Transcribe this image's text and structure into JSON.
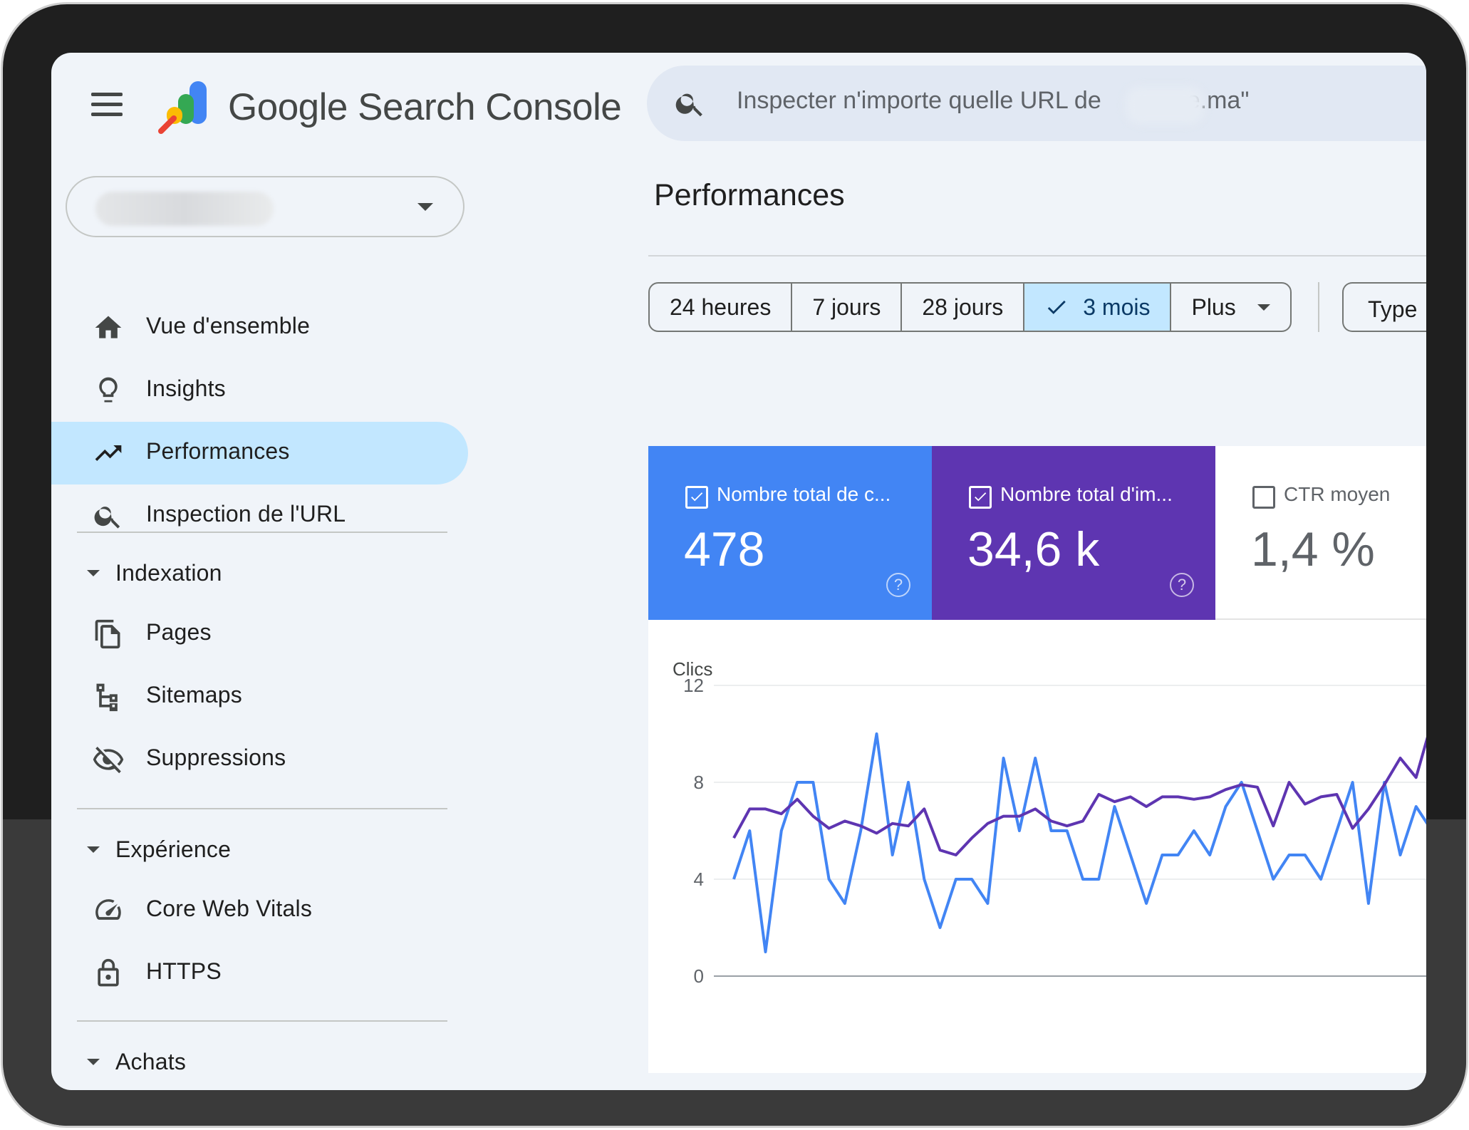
{
  "app": {
    "brand_google": "Google",
    "brand_product": "Search Console"
  },
  "search": {
    "placeholder_prefix": "Inspecter n'importe quelle URL de",
    "placeholder_suffix": "e.ma\""
  },
  "sidebar": {
    "items": [
      {
        "label": "Vue d'ensemble",
        "icon": "home-icon"
      },
      {
        "label": "Insights",
        "icon": "lightbulb-icon"
      },
      {
        "label": "Performances",
        "icon": "trending-up-icon",
        "active": true
      },
      {
        "label": "Inspection de l'URL",
        "icon": "search-icon"
      }
    ],
    "sections": [
      {
        "label": "Indexation",
        "items": [
          {
            "label": "Pages",
            "icon": "pages-icon"
          },
          {
            "label": "Sitemaps",
            "icon": "sitemap-icon"
          },
          {
            "label": "Suppressions",
            "icon": "eye-off-icon"
          }
        ]
      },
      {
        "label": "Expérience",
        "items": [
          {
            "label": "Core Web Vitals",
            "icon": "speedometer-icon"
          },
          {
            "label": "HTTPS",
            "icon": "lock-icon"
          }
        ]
      },
      {
        "label": "Achats",
        "items": []
      }
    ]
  },
  "main": {
    "title": "Performances",
    "date_chips": [
      {
        "label": "24 heures",
        "selected": false
      },
      {
        "label": "7 jours",
        "selected": false
      },
      {
        "label": "28 jours",
        "selected": false
      },
      {
        "label": "3 mois",
        "selected": true
      },
      {
        "label": "Plus",
        "selected": false,
        "dropdown": true
      }
    ],
    "type_chip": "Type"
  },
  "metrics": [
    {
      "label": "Nombre total de c...",
      "value": "478",
      "checked": true,
      "color": "#4285f4"
    },
    {
      "label": "Nombre total d'im...",
      "value": "34,6 k",
      "checked": true,
      "color": "#5e35b1"
    },
    {
      "label": "CTR moyen",
      "value": "1,4 %",
      "checked": false,
      "color": "#ffffff"
    }
  ],
  "chart_data": {
    "type": "line",
    "ylabel": "Clics",
    "ylim": [
      0,
      12
    ],
    "yticks": [
      "0",
      "4",
      "8",
      "12"
    ],
    "grid": true,
    "series": [
      {
        "color": "#4285f4",
        "values": [
          4,
          6,
          1,
          6,
          8,
          8,
          4,
          3,
          6,
          10,
          5,
          8,
          4,
          2,
          4,
          4,
          3,
          9,
          6,
          9,
          6,
          6,
          4,
          4,
          7,
          5,
          3,
          5,
          5,
          6,
          5,
          7,
          8,
          6,
          4,
          5,
          5,
          4,
          6,
          8,
          3,
          8,
          5,
          7,
          6
        ]
      },
      {
        "color": "#5e35b1",
        "values": [
          5.7,
          6.9,
          6.9,
          6.7,
          7.3,
          6.6,
          6.1,
          6.4,
          6.2,
          5.9,
          6.3,
          6.2,
          6.9,
          5.2,
          5.0,
          5.7,
          6.3,
          6.6,
          6.6,
          6.9,
          6.4,
          6.2,
          6.4,
          7.5,
          7.2,
          7.4,
          7.0,
          7.4,
          7.4,
          7.3,
          7.4,
          7.7,
          7.9,
          7.8,
          6.2,
          8.0,
          7.1,
          7.4,
          7.5,
          6.1,
          6.9,
          7.9,
          9.0,
          8.2,
          10.5
        ]
      }
    ]
  }
}
